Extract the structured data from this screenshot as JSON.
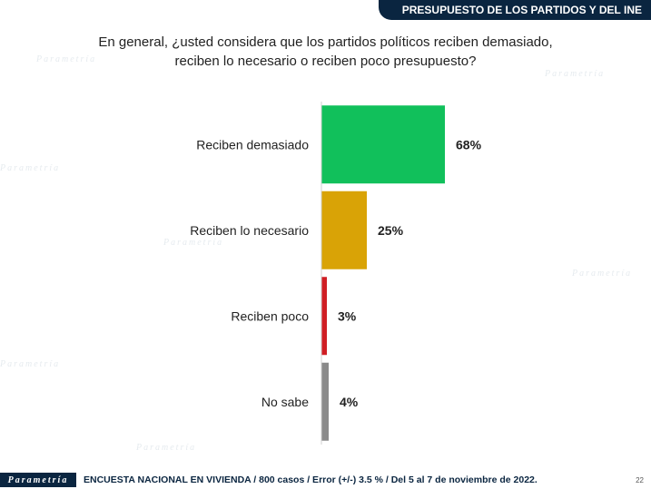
{
  "header": {
    "title": "PRESUPUESTO DE LOS PARTIDOS Y DEL INE"
  },
  "question": {
    "line1": "En general, ¿usted considera que los partidos políticos reciben demasiado,",
    "line2": "reciben lo necesario o reciben poco presupuesto?"
  },
  "chart_data": {
    "type": "bar",
    "orientation": "horizontal",
    "title": "En general, ¿usted considera que los partidos políticos reciben demasiado, reciben lo necesario o reciben poco presupuesto?",
    "categories": [
      "Reciben demasiado",
      "Reciben lo necesario",
      "Reciben poco",
      "No sabe"
    ],
    "values": [
      68,
      25,
      3,
      4
    ],
    "value_labels": [
      "68%",
      "25%",
      "3%",
      "4%"
    ],
    "colors": [
      "#11c05b",
      "#d9a306",
      "#d01e24",
      "#8a8a8a"
    ],
    "xlim": [
      0,
      100
    ],
    "grid": false,
    "legend": "none"
  },
  "footer": {
    "logo_text": "Parametría",
    "note": "ENCUESTA NACIONAL EN VIVIENDA / 800 casos / Error (+/-) 3.5 % / Del 5 al 7 de noviembre de 2022.",
    "page_number": "22"
  },
  "watermark": {
    "text": "Parametría"
  }
}
